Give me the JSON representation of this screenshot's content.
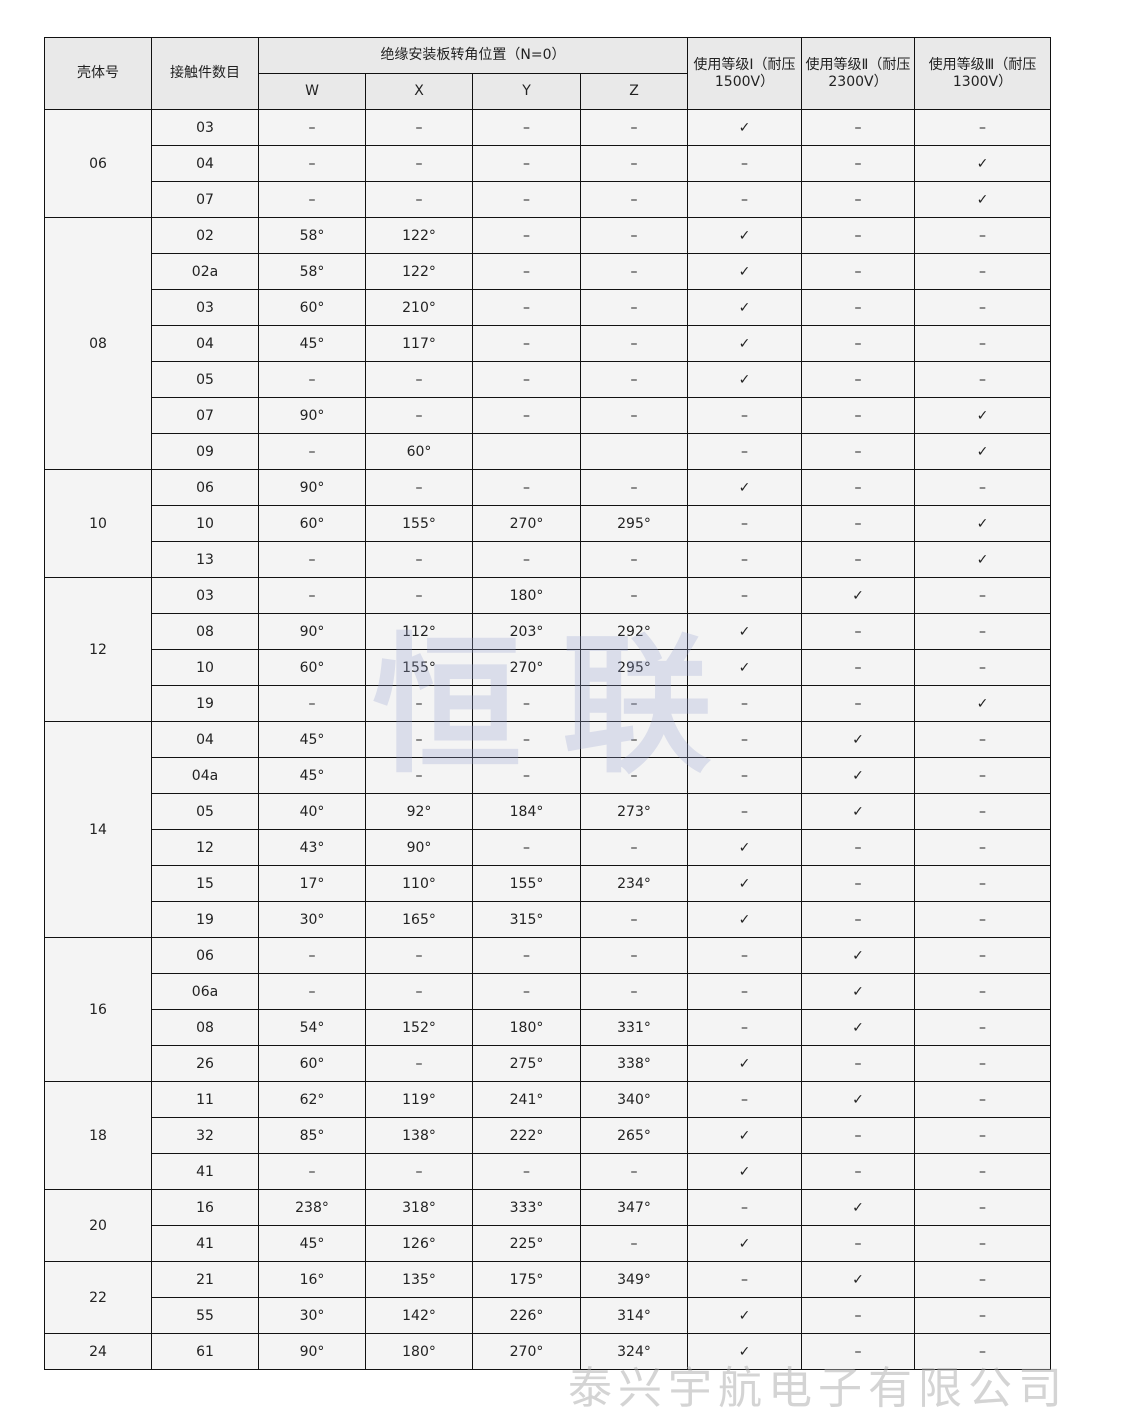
{
  "header": {
    "shell": "壳体号",
    "contacts": "接触件数目",
    "rotation": "绝缘安装板转角位置（N=0）",
    "cols": [
      "W",
      "X",
      "Y",
      "Z"
    ],
    "grade1": "使用等级Ⅰ（耐压1500V）",
    "grade2": "使用等级Ⅱ（耐压2300V）",
    "grade3": "使用等级Ⅲ（耐压1300V）"
  },
  "groups": [
    {
      "shell": "06",
      "rows": [
        [
          "03",
          "–",
          "–",
          "–",
          "–",
          "✓",
          "–",
          "–"
        ],
        [
          "04",
          "–",
          "–",
          "–",
          "–",
          "–",
          "–",
          "✓"
        ],
        [
          "07",
          "–",
          "–",
          "–",
          "–",
          "–",
          "–",
          "✓"
        ]
      ]
    },
    {
      "shell": "08",
      "rows": [
        [
          "02",
          "58°",
          "122°",
          "–",
          "–",
          "✓",
          "–",
          "–"
        ],
        [
          "02a",
          "58°",
          "122°",
          "–",
          "–",
          "✓",
          "–",
          "–"
        ],
        [
          "03",
          "60°",
          "210°",
          "–",
          "–",
          "✓",
          "–",
          "–"
        ],
        [
          "04",
          "45°",
          "117°",
          "–",
          "–",
          "✓",
          "–",
          "–"
        ],
        [
          "05",
          "–",
          "–",
          "–",
          "–",
          "✓",
          "–",
          "–"
        ],
        [
          "07",
          "90°",
          "–",
          "–",
          "–",
          "–",
          "–",
          "✓"
        ],
        [
          "09",
          "–",
          "60°",
          "",
          "",
          "–",
          "–",
          "✓"
        ]
      ]
    },
    {
      "shell": "10",
      "rows": [
        [
          "06",
          "90°",
          "–",
          "–",
          "–",
          "✓",
          "–",
          "–"
        ],
        [
          "10",
          "60°",
          "155°",
          "270°",
          "295°",
          "–",
          "–",
          "✓"
        ],
        [
          "13",
          "–",
          "–",
          "–",
          "–",
          "–",
          "–",
          "✓"
        ]
      ]
    },
    {
      "shell": "12",
      "rows": [
        [
          "03",
          "–",
          "–",
          "180°",
          "–",
          "–",
          "✓",
          "–"
        ],
        [
          "08",
          "90°",
          "112°",
          "203°",
          "292°",
          "✓",
          "–",
          "–"
        ],
        [
          "10",
          "60°",
          "155°",
          "270°",
          "295°",
          "✓",
          "–",
          "–"
        ],
        [
          "19",
          "–",
          "–",
          "–",
          "–",
          "–",
          "–",
          "✓"
        ]
      ]
    },
    {
      "shell": "14",
      "rows": [
        [
          "04",
          "45°",
          "–",
          "–",
          "–",
          "–",
          "✓",
          "–"
        ],
        [
          "04a",
          "45°",
          "–",
          "–",
          "–",
          "–",
          "✓",
          "–"
        ],
        [
          "05",
          "40°",
          "92°",
          "184°",
          "273°",
          "–",
          "✓",
          "–"
        ],
        [
          "12",
          "43°",
          "90°",
          "–",
          "–",
          "✓",
          "–",
          "–"
        ],
        [
          "15",
          "17°",
          "110°",
          "155°",
          "234°",
          "✓",
          "–",
          "–"
        ],
        [
          "19",
          "30°",
          "165°",
          "315°",
          "–",
          "✓",
          "–",
          "–"
        ]
      ]
    },
    {
      "shell": "16",
      "rows": [
        [
          "06",
          "–",
          "–",
          "–",
          "–",
          "–",
          "✓",
          "–"
        ],
        [
          "06a",
          "–",
          "–",
          "–",
          "–",
          "–",
          "✓",
          "–"
        ],
        [
          "08",
          "54°",
          "152°",
          "180°",
          "331°",
          "–",
          "✓",
          "–"
        ],
        [
          "26",
          "60°",
          "–",
          "275°",
          "338°",
          "✓",
          "–",
          "–"
        ]
      ]
    },
    {
      "shell": "18",
      "rows": [
        [
          "11",
          "62°",
          "119°",
          "241°",
          "340°",
          "–",
          "✓",
          "–"
        ],
        [
          "32",
          "85°",
          "138°",
          "222°",
          "265°",
          "✓",
          "–",
          "–"
        ],
        [
          "41",
          "–",
          "–",
          "–",
          "–",
          "✓",
          "–",
          "–"
        ]
      ]
    },
    {
      "shell": "20",
      "rows": [
        [
          "16",
          "238°",
          "318°",
          "333°",
          "347°",
          "–",
          "✓",
          "–"
        ],
        [
          "41",
          "45°",
          "126°",
          "225°",
          "–",
          "✓",
          "–",
          "–"
        ]
      ]
    },
    {
      "shell": "22",
      "rows": [
        [
          "21",
          "16°",
          "135°",
          "175°",
          "349°",
          "–",
          "✓",
          "–"
        ],
        [
          "55",
          "30°",
          "142°",
          "226°",
          "314°",
          "✓",
          "–",
          "–"
        ]
      ]
    },
    {
      "shell": "24",
      "rows": [
        [
          "61",
          "90°",
          "180°",
          "270°",
          "324°",
          "✓",
          "–",
          "–"
        ]
      ]
    }
  ],
  "watermarks": {
    "center": "恒联",
    "bottom": "泰兴宇航电子有限公司"
  }
}
